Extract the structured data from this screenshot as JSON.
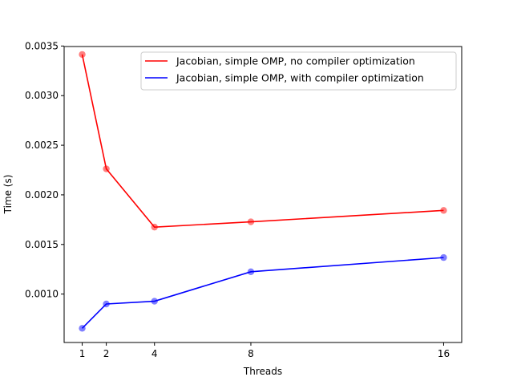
{
  "chart_data": {
    "type": "line",
    "title": "",
    "xlabel": "Threads",
    "ylabel": "Time (s)",
    "x": [
      1,
      2,
      4,
      8,
      16
    ],
    "x_ticks": [
      "1",
      "2",
      "4",
      "8",
      "16"
    ],
    "y_ticks": [
      "0.0010",
      "0.0015",
      "0.0020",
      "0.0025",
      "0.0030",
      "0.0035"
    ],
    "xlim": [
      0.25,
      16.75
    ],
    "ylim": [
      0.000512,
      0.003495
    ],
    "grid": false,
    "legend_position": "top-right",
    "series": [
      {
        "name": "Jacobian, simple OMP, no compiler optimization",
        "color": "#ff0000",
        "values": [
          0.003415,
          0.002262,
          0.001675,
          0.001728,
          0.001843
        ]
      },
      {
        "name": "Jacobian, simple OMP, with compiler optimization",
        "color": "#0000ff",
        "values": [
          0.000655,
          0.0009,
          0.000928,
          0.001225,
          0.001368
        ]
      }
    ]
  }
}
